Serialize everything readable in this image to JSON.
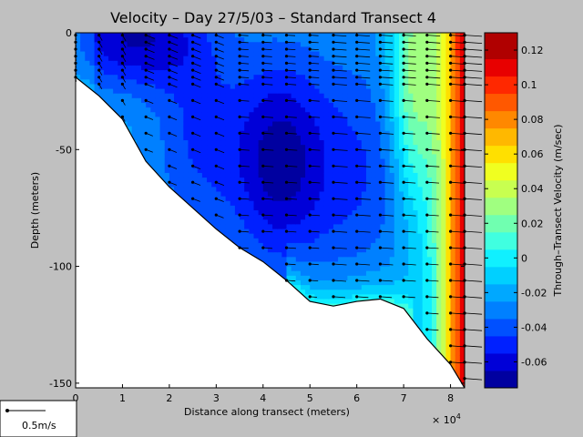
{
  "chart_data": {
    "type": "heatmap",
    "title": "Velocity – Day 27/5/03 – Standard Transect 4",
    "xlabel": "Distance along transect (meters)",
    "ylabel": "Depth (meters)",
    "x_exponent_label": "× 10",
    "x_exponent_power": "4",
    "xlim": [
      0,
      8.3
    ],
    "ylim": [
      -152,
      0
    ],
    "xticks": [
      "0",
      "1",
      "2",
      "3",
      "4",
      "5",
      "6",
      "7",
      "8"
    ],
    "xtick_values": [
      0,
      1,
      2,
      3,
      4,
      5,
      6,
      7,
      8
    ],
    "yticks": [
      "0",
      "-50",
      "-100",
      "-150"
    ],
    "ytick_values": [
      0,
      -50,
      -100,
      -150
    ],
    "colorbar": {
      "label": "Through–Transect Velocity (m/sec)",
      "range": [
        -0.075,
        0.13
      ],
      "tick_labels": [
        "0.12",
        "0.1",
        "0.08",
        "0.06",
        "0.04",
        "0.02",
        "0",
        "-0.02",
        "-0.04",
        "-0.06"
      ],
      "tick_values": [
        0.12,
        0.1,
        0.08,
        0.06,
        0.04,
        0.02,
        0,
        -0.02,
        -0.04,
        -0.06
      ],
      "levels": [
        -0.075,
        -0.065,
        -0.055,
        -0.045,
        -0.035,
        -0.025,
        -0.015,
        -0.005,
        0.005,
        0.015,
        0.025,
        0.035,
        0.045,
        0.055,
        0.065,
        0.075,
        0.085,
        0.095,
        0.105,
        0.115,
        0.13
      ],
      "colors": [
        "#0000a0",
        "#0000d8",
        "#0020ff",
        "#0050ff",
        "#0080ff",
        "#00a8ff",
        "#00d0ff",
        "#10f0ff",
        "#40ffe0",
        "#70ffb0",
        "#a0ff80",
        "#c8ff50",
        "#f0ff20",
        "#ffe000",
        "#ffb800",
        "#ff8800",
        "#ff5800",
        "#ff2800",
        "#e80000",
        "#b00000"
      ]
    },
    "bottom_profile": {
      "x": [
        0,
        0.5,
        1.0,
        1.5,
        2.0,
        2.5,
        3.0,
        3.5,
        4.0,
        4.5,
        5.0,
        5.5,
        6.0,
        6.5,
        7.0,
        7.5,
        8.0,
        8.3
      ],
      "depth": [
        -19,
        -27,
        -37,
        -55,
        -66,
        -75,
        -84,
        -92,
        -98,
        -106,
        -115,
        -117,
        -115,
        -114,
        -118,
        -131,
        -142,
        -152
      ]
    },
    "vector_stations": [
      0,
      0.5,
      1.0,
      1.5,
      2.0,
      2.5,
      3.0,
      3.5,
      4.0,
      4.5,
      5.0,
      5.5,
      6.0,
      6.5,
      7.0,
      7.5,
      8.0,
      8.3
    ],
    "scale_vector_label": "0.5m/s",
    "scale_vector_speed": 0.5
  }
}
